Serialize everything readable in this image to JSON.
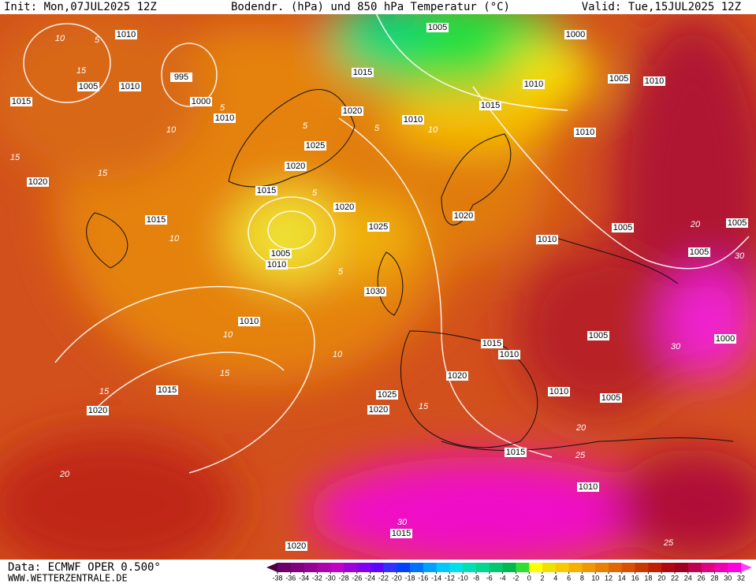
{
  "header": {
    "init": "Init: Mon,07JUL2025 12Z",
    "title": "Bodendr. (hPa) und 850 hPa Temperatur (°C)",
    "valid": "Valid: Tue,15JUL2025 12Z"
  },
  "footer": {
    "source": "Data: ECMWF OPER 0.500°",
    "website": "WWW.WETTERZENTRALE.DE"
  },
  "colorbar": {
    "labels": [
      -38,
      -36,
      -34,
      -32,
      -30,
      -28,
      -26,
      -24,
      -22,
      -20,
      -18,
      -16,
      -14,
      -12,
      -10,
      -8,
      -6,
      -4,
      -2,
      0,
      2,
      4,
      6,
      8,
      10,
      12,
      14,
      16,
      18,
      20,
      22,
      24,
      26,
      28,
      30,
      32
    ],
    "colors": [
      "#4a0040",
      "#6a006a",
      "#800080",
      "#960096",
      "#ad00ad",
      "#c400c4",
      "#a000d8",
      "#8200f0",
      "#6000ff",
      "#3030ff",
      "#0040ff",
      "#0070ff",
      "#00a0ff",
      "#00c8ff",
      "#00e0e8",
      "#00e0b0",
      "#00d890",
      "#00c870",
      "#00b850",
      "#30e030",
      "#ffff00",
      "#f0e000",
      "#f8c800",
      "#f8b000",
      "#f09800",
      "#e88000",
      "#e06800",
      "#d85000",
      "#c83800",
      "#c02000",
      "#b00810",
      "#a00020",
      "#c00050",
      "#e00080",
      "#f000b0",
      "#ff00e0",
      "#ff40ff"
    ]
  },
  "isobar_labels": [
    "1010",
    "1005",
    "1000",
    "1005",
    "1010",
    "995",
    "1015",
    "1010",
    "1005",
    "1010",
    "1015",
    "1000",
    "1010",
    "1020",
    "1010",
    "1015",
    "1010",
    "1025",
    "1020",
    "1020",
    "1015",
    "1020",
    "1015",
    "1020",
    "1025",
    "1005",
    "1005",
    "1010",
    "1005",
    "1010",
    "1005",
    "1030",
    "1010",
    "1005",
    "1000",
    "1015",
    "1010",
    "1020",
    "1015",
    "1010",
    "1025",
    "1005",
    "1020",
    "1020",
    "1015",
    "1010",
    "1015",
    "1020"
  ],
  "temperature_labels": [
    "10",
    "5",
    "15",
    "10",
    "5",
    "5",
    "5",
    "10",
    "5",
    "15",
    "15",
    "10",
    "5",
    "10",
    "10",
    "15",
    "15",
    "20",
    "15",
    "25",
    "20",
    "30",
    "30",
    "25",
    "30",
    "20"
  ]
}
